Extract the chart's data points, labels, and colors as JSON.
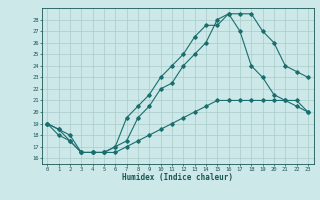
{
  "xlabel": "Humidex (Indice chaleur)",
  "bg_color": "#cce8e8",
  "grid_color": "#aacccc",
  "line_color": "#1a6e6e",
  "series1_x": [
    0,
    1,
    2,
    3,
    4,
    5,
    6,
    7,
    8,
    9,
    10,
    11,
    12,
    13,
    14,
    15,
    16,
    17,
    18,
    19,
    20,
    21,
    22,
    23
  ],
  "series1_y": [
    19,
    18.5,
    18,
    16.5,
    16.5,
    16.5,
    16.5,
    17,
    17.5,
    18,
    18.5,
    19,
    19.5,
    20,
    20.5,
    21,
    21,
    21,
    21,
    21,
    21,
    21,
    20.5,
    20
  ],
  "series2_x": [
    0,
    1,
    2,
    3,
    4,
    5,
    6,
    7,
    8,
    9,
    10,
    11,
    12,
    13,
    14,
    15,
    16,
    17,
    18,
    19,
    20,
    21,
    22,
    23
  ],
  "series2_y": [
    19,
    18,
    17.5,
    16.5,
    16.5,
    16.5,
    17,
    17.5,
    19.5,
    20.5,
    22,
    22.5,
    24,
    25,
    26,
    28,
    28.5,
    27,
    24,
    23,
    21.5,
    21,
    21,
    20
  ],
  "series3_x": [
    0,
    1,
    2,
    3,
    4,
    5,
    6,
    7,
    8,
    9,
    10,
    11,
    12,
    13,
    14,
    15,
    16,
    17,
    18,
    19,
    20,
    21,
    22,
    23
  ],
  "series3_y": [
    19,
    18.5,
    17.5,
    16.5,
    16.5,
    16.5,
    17,
    19.5,
    20.5,
    21.5,
    23,
    24,
    25,
    26.5,
    27.5,
    27.5,
    28.5,
    28.5,
    28.5,
    27,
    26,
    24,
    23.5,
    23
  ],
  "xlim": [
    -0.5,
    23.5
  ],
  "ylim": [
    15.5,
    29
  ],
  "yticks": [
    16,
    17,
    18,
    19,
    20,
    21,
    22,
    23,
    24,
    25,
    26,
    27,
    28
  ],
  "xticks": [
    0,
    1,
    2,
    3,
    4,
    5,
    6,
    7,
    8,
    9,
    10,
    11,
    12,
    13,
    14,
    15,
    16,
    17,
    18,
    19,
    20,
    21,
    22,
    23
  ]
}
